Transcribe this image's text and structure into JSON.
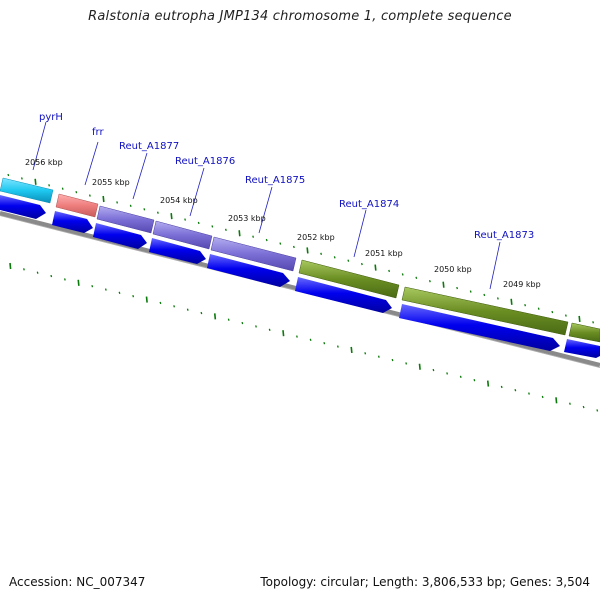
{
  "title": "Ralstonia eutropha JMP134 chromosome 1, complete sequence",
  "footer": {
    "accession": "Accession: NC_007347",
    "summary": "Topology: circular; Length: 3,806,533 bp; Genes: 3,504"
  },
  "colors": {
    "pyrH": "#1ec8f0",
    "frr": "#f08080",
    "reut_purple": "#7b6fd6",
    "reut_green": "#6b8e23",
    "cds": "#0000ee",
    "tick": "#0a7a0a",
    "backbone": "#7a7a7a",
    "label_line": "#2020c0"
  },
  "genes": [
    {
      "name": "pyrH",
      "color_key": "pyrH"
    },
    {
      "name": "frr",
      "color_key": "frr"
    },
    {
      "name": "Reut_A1877",
      "color_key": "reut_purple"
    },
    {
      "name": "Reut_A1876",
      "color_key": "reut_purple"
    },
    {
      "name": "Reut_A1875",
      "color_key": "reut_purple"
    },
    {
      "name": "Reut_A1874",
      "color_key": "reut_green"
    },
    {
      "name": "Reut_A1873",
      "color_key": "reut_green"
    }
  ],
  "scale_labels": [
    "2056 kbp",
    "2055 kbp",
    "2054 kbp",
    "2053 kbp",
    "2052 kbp",
    "2051 kbp",
    "2050 kbp",
    "2049 kbp"
  ]
}
